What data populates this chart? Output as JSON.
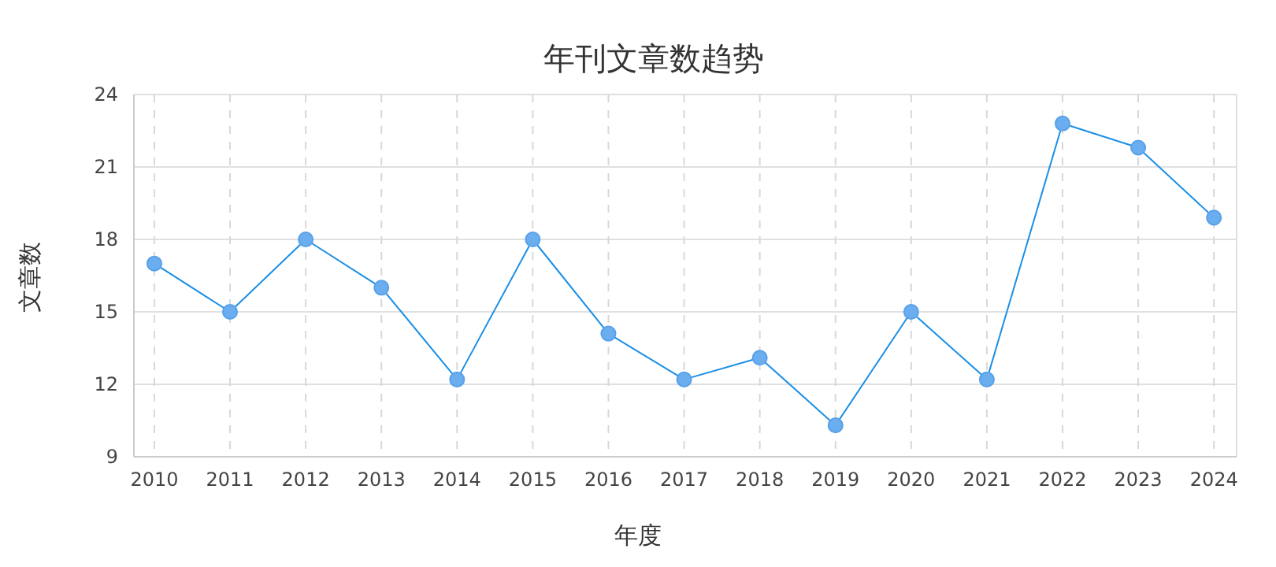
{
  "chart_data": {
    "type": "line",
    "title": "年刊文章数趋势",
    "xlabel": "年度",
    "ylabel": "文章数",
    "categories": [
      "2010",
      "2011",
      "2012",
      "2013",
      "2014",
      "2015",
      "2016",
      "2017",
      "2018",
      "2019",
      "2020",
      "2021",
      "2022",
      "2023",
      "2024"
    ],
    "series": [
      {
        "color": "#1a8fe6",
        "values": [
          17,
          15,
          18,
          16,
          12.2,
          18,
          14.1,
          12.2,
          13.1,
          10.3,
          15,
          12.2,
          22.8,
          21.8,
          18.9
        ]
      }
    ],
    "ylim": [
      9,
      24
    ],
    "yticks": [
      9,
      12,
      15,
      18,
      21,
      24
    ],
    "grid": true,
    "marker": "circle",
    "line_style": "solid"
  }
}
